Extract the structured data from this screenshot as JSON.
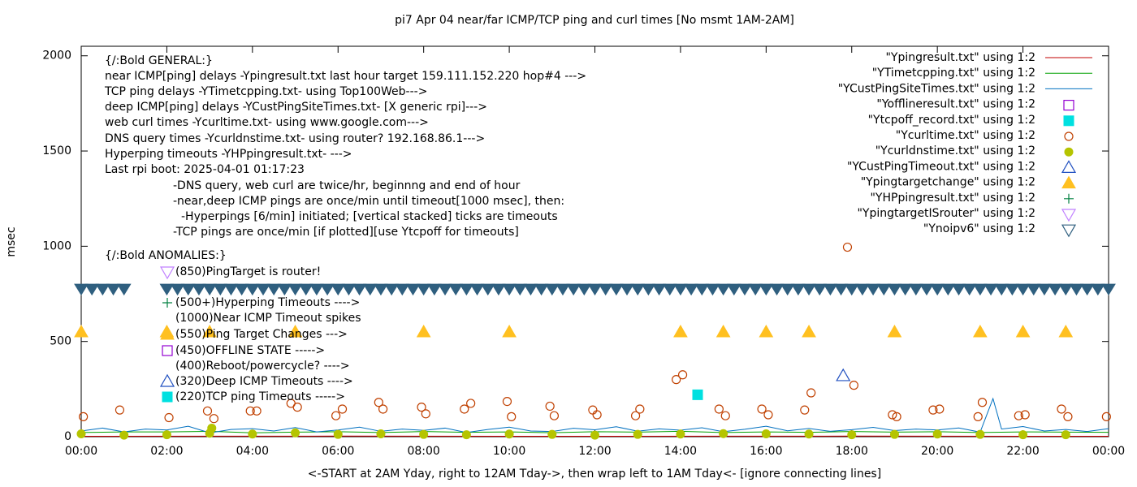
{
  "chart_data": {
    "type": "line",
    "title": "pi7 Apr 04  near/far ICMP/TCP ping and curl times [No msmt 1AM-2AM]",
    "ylabel": "msec",
    "xlabel": "<-START at 2AM Yday, right to 12AM Tday->, then wrap left to 1AM Tday<- [ignore connecting lines]",
    "xlim": [
      0,
      24
    ],
    "ylim": [
      0,
      2050
    ],
    "xticks": [
      {
        "value": 0,
        "label": "00:00"
      },
      {
        "value": 2,
        "label": "02:00"
      },
      {
        "value": 4,
        "label": "04:00"
      },
      {
        "value": 6,
        "label": "06:00"
      },
      {
        "value": 8,
        "label": "08:00"
      },
      {
        "value": 10,
        "label": "10:00"
      },
      {
        "value": 12,
        "label": "12:00"
      },
      {
        "value": 14,
        "label": "14:00"
      },
      {
        "value": 16,
        "label": "16:00"
      },
      {
        "value": 18,
        "label": "18:00"
      },
      {
        "value": 20,
        "label": "20:00"
      },
      {
        "value": 22,
        "label": "22:00"
      },
      {
        "value": 24,
        "label": "00:00"
      }
    ],
    "yticks": [
      0,
      500,
      1000,
      1500,
      2000
    ],
    "notes": [
      "{/:Bold GENERAL:}",
      "near ICMP[ping] delays -Ypingresult.txt last hour target 159.111.152.220 hop#4 --->",
      "TCP ping delays -YTimetcpping.txt- using Top100Web--->",
      "deep ICMP[ping] delays -YCustPingSiteTimes.txt- [X generic rpi]--->",
      "web curl times -Ycurltime.txt- using www.google.com--->",
      "DNS query times -Ycurldnstime.txt- using router? 192.168.86.1--->",
      "Hyperping timeouts -YHPpingresult.txt- --->",
      "Last rpi boot: 2025-04-01 01:17:23",
      "-DNS query, web curl are twice/hr, beginnng and end of hour",
      "-near,deep ICMP pings are once/min until timeout[1000 msec], then:",
      "-Hyperpings [6/min] initiated; [vertical stacked] ticks are timeouts",
      "-TCP pings are once/min [if plotted][use Ytcpoff for timeouts]",
      "{/:Bold ANOMALIES:}"
    ],
    "annotations": [
      {
        "text": "(850)PingTarget is router!",
        "marker": "triangle-down-open",
        "color": "#c080ff"
      },
      {
        "text": "(500+)Hyperping Timeouts ---->",
        "marker": "plus",
        "color": "#008040"
      },
      {
        "text": "(1000)Near ICMP Timeout spikes",
        "marker": "none",
        "color": "#000000"
      },
      {
        "text": "(550)Ping Target Changes --->",
        "marker": "triangle-up-filled",
        "color": "#ffc020"
      },
      {
        "text": "(450)OFFLINE STATE ----->",
        "marker": "square-open",
        "color": "#9400d3"
      },
      {
        "text": "(400)Reboot/powercycle? ---->",
        "marker": "none",
        "color": "#000000"
      },
      {
        "text": "(320)Deep ICMP Timeouts ---->",
        "marker": "triangle-up-open",
        "color": "#2050c0"
      },
      {
        "text": "(220)TCP ping Timeouts ----->",
        "marker": "square-filled",
        "color": "#00e0e0"
      }
    ],
    "series": [
      {
        "name": "\"Ypingresult.txt\" using 1:2",
        "style": "line",
        "color": "#c00000",
        "x": [
          0,
          6,
          12,
          18,
          24
        ],
        "values": [
          2,
          3,
          2,
          3,
          2
        ]
      },
      {
        "name": "\"YTimetcpping.txt\" using 1:2",
        "style": "line",
        "color": "#00a000",
        "x": [
          0,
          1,
          2,
          3,
          4,
          5,
          6,
          7,
          8,
          9,
          10,
          11,
          12,
          13,
          14,
          15,
          16,
          17,
          18,
          19,
          20,
          21,
          22,
          23,
          24
        ],
        "values": [
          22,
          25,
          25,
          28,
          20,
          24,
          26,
          22,
          27,
          23,
          25,
          21,
          26,
          24,
          28,
          22,
          25,
          23,
          27,
          24,
          26,
          22,
          25,
          24,
          23
        ]
      },
      {
        "name": "\"YCustPingSiteTimes.txt\" using 1:2",
        "style": "line",
        "color": "#0070c0",
        "x": [
          0,
          0.5,
          1,
          1.5,
          2,
          2.5,
          3,
          3.5,
          4,
          4.5,
          5,
          5.5,
          6,
          6.5,
          7,
          7.5,
          8,
          8.5,
          9,
          9.5,
          10,
          10.5,
          11,
          11.5,
          12,
          12.5,
          13,
          13.5,
          14,
          14.5,
          15,
          15.5,
          16,
          16.5,
          17,
          17.5,
          18,
          18.5,
          19,
          19.5,
          20,
          20.5,
          21,
          21.3,
          21.5,
          22,
          22.5,
          23,
          23.5,
          24
        ],
        "values": [
          30,
          45,
          25,
          40,
          35,
          55,
          20,
          38,
          42,
          30,
          48,
          25,
          35,
          50,
          28,
          40,
          33,
          45,
          22,
          38,
          50,
          30,
          27,
          44,
          36,
          52,
          29,
          41,
          34,
          47,
          26,
          39,
          55,
          31,
          43,
          28,
          37,
          49,
          32,
          40,
          35,
          46,
          24,
          200,
          40,
          53,
          30,
          38,
          27,
          42
        ]
      },
      {
        "name": "\"Yofflineresult.txt\" using 1:2",
        "style": "scatter",
        "marker": "square-open",
        "color": "#9400d3",
        "x": [],
        "values": []
      },
      {
        "name": "\"Ytcpoff_record.txt\" using 1:2",
        "style": "scatter",
        "marker": "square-filled",
        "color": "#00e0e0",
        "x": [
          14.4
        ],
        "values": [
          220
        ]
      },
      {
        "name": "\"Ycurltime.txt\" using 1:2",
        "style": "scatter",
        "marker": "circle-open",
        "color": "#c04000",
        "x": [
          0.05,
          0.9,
          2.05,
          2.95,
          3.1,
          3.95,
          4.1,
          4.9,
          5.05,
          5.95,
          6.1,
          6.95,
          7.05,
          7.95,
          8.05,
          8.95,
          9.1,
          9.95,
          10.05,
          10.95,
          11.05,
          11.95,
          12.05,
          12.95,
          13.05,
          13.9,
          14.05,
          14.9,
          15.05,
          15.9,
          16.05,
          16.9,
          17.05,
          17.9,
          18.05,
          18.95,
          19.05,
          19.9,
          20.05,
          20.95,
          21.05,
          21.9,
          22.05,
          22.9,
          23.05,
          23.95
        ],
        "values": [
          105,
          140,
          100,
          135,
          95,
          135,
          135,
          175,
          155,
          110,
          145,
          180,
          145,
          155,
          120,
          145,
          175,
          185,
          105,
          160,
          110,
          140,
          115,
          110,
          145,
          300,
          325,
          145,
          110,
          145,
          115,
          140,
          230,
          995,
          270,
          115,
          105,
          140,
          145,
          105,
          180,
          110,
          115,
          145,
          105,
          105
        ]
      },
      {
        "name": "\"Ycurldnstime.txt\" using 1:2",
        "style": "scatter",
        "marker": "circle-filled",
        "color": "#b5c400",
        "x": [
          0,
          1,
          2,
          3,
          3.05,
          4,
          5,
          6,
          7,
          8,
          9,
          10,
          11,
          12,
          13,
          14,
          15,
          16,
          17,
          18,
          19,
          20,
          21,
          22,
          23
        ],
        "values": [
          15,
          8,
          10,
          18,
          45,
          14,
          20,
          12,
          15,
          12,
          10,
          14,
          12,
          8,
          12,
          14,
          16,
          15,
          14,
          10,
          12,
          14,
          12,
          10,
          10
        ]
      },
      {
        "name": "\"YCustPingTimeout.txt\" using 1:2",
        "style": "scatter",
        "marker": "triangle-up-open",
        "color": "#2050c0",
        "x": [
          17.8
        ],
        "values": [
          320
        ]
      },
      {
        "name": "\"Ypingtargetchange\" using 1:2",
        "style": "scatter",
        "marker": "triangle-up-filled",
        "color": "#ffc020",
        "x": [
          0,
          2,
          3,
          5,
          8,
          10,
          14,
          15,
          16,
          17,
          19,
          21,
          22,
          23
        ],
        "values": [
          550,
          550,
          550,
          550,
          550,
          550,
          550,
          550,
          550,
          550,
          550,
          550,
          550,
          550
        ]
      },
      {
        "name": "\"YHPpingresult.txt\" using 1:2",
        "style": "scatter",
        "marker": "plus",
        "color": "#008040",
        "x": [],
        "values": []
      },
      {
        "name": "\"YpingtargetISrouter\" using 1:2",
        "style": "scatter",
        "marker": "triangle-down-open",
        "color": "#c080ff",
        "x": [],
        "values": []
      },
      {
        "name": "\"Ynoipv6\" using 1:2",
        "style": "scatter",
        "marker": "triangle-down-band",
        "color": "#2f5f7f",
        "x": [
          0,
          0.25,
          0.5,
          0.75,
          1,
          2,
          2.25,
          2.5,
          2.75,
          3,
          3.25,
          3.5,
          3.75,
          4,
          4.25,
          4.5,
          4.75,
          5,
          5.25,
          5.5,
          5.75,
          6,
          6.25,
          6.5,
          6.75,
          7,
          7.25,
          7.5,
          7.75,
          8,
          8.25,
          8.5,
          8.75,
          9,
          9.25,
          9.5,
          9.75,
          10,
          10.25,
          10.5,
          10.75,
          11,
          11.25,
          11.5,
          11.75,
          12,
          12.25,
          12.5,
          12.75,
          13,
          13.25,
          13.5,
          13.75,
          14,
          14.25,
          14.5,
          14.75,
          15,
          15.25,
          15.5,
          15.75,
          16,
          16.25,
          16.5,
          16.75,
          17,
          17.25,
          17.5,
          17.75,
          18,
          18.25,
          18.5,
          18.75,
          19,
          19.25,
          19.5,
          19.75,
          20,
          20.25,
          20.5,
          20.75,
          21,
          21.25,
          21.5,
          21.75,
          22,
          22.25,
          22.5,
          22.75,
          23,
          23.25,
          23.5,
          23.75,
          24
        ],
        "values": [
          775,
          775,
          775,
          775,
          775,
          775,
          775,
          775,
          775,
          775,
          775,
          775,
          775,
          775,
          775,
          775,
          775,
          775,
          775,
          775,
          775,
          775,
          775,
          775,
          775,
          775,
          775,
          775,
          775,
          775,
          775,
          775,
          775,
          775,
          775,
          775,
          775,
          775,
          775,
          775,
          775,
          775,
          775,
          775,
          775,
          775,
          775,
          775,
          775,
          775,
          775,
          775,
          775,
          775,
          775,
          775,
          775,
          775,
          775,
          775,
          775,
          775,
          775,
          775,
          775,
          775,
          775,
          775,
          775,
          775,
          775,
          775,
          775,
          775,
          775,
          775,
          775,
          775,
          775,
          775,
          775,
          775,
          775,
          775,
          775,
          775,
          775,
          775,
          775,
          775,
          775,
          775,
          775,
          775
        ]
      }
    ]
  }
}
